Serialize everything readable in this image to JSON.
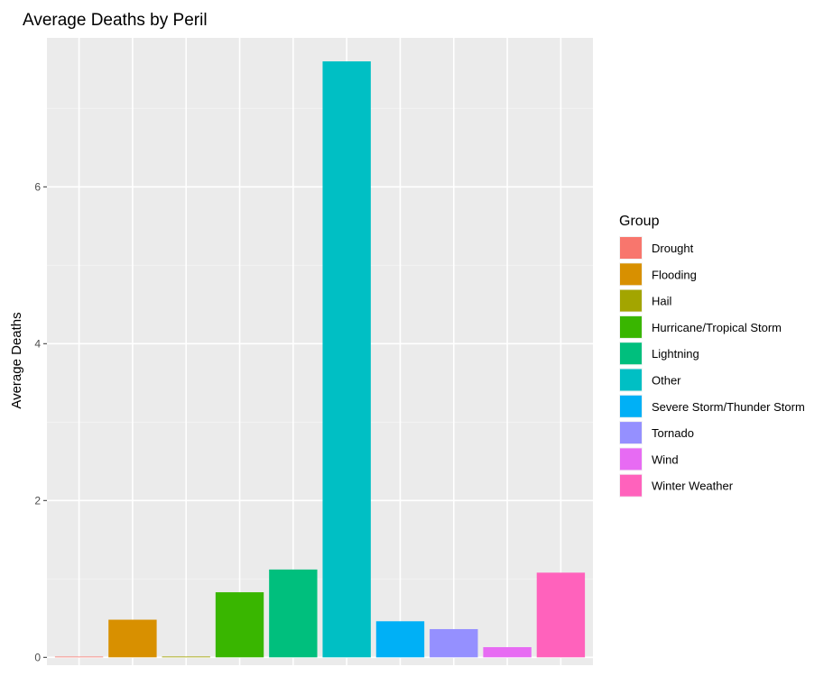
{
  "chart_data": {
    "type": "bar",
    "title": "Average Deaths by Peril",
    "xlabel": "",
    "ylabel": "Average Deaths",
    "ylim": [
      -0.1,
      7.9
    ],
    "yticks": [
      0,
      2,
      4,
      6
    ],
    "grid": true,
    "legend": {
      "title": "Group",
      "position": "right"
    },
    "categories": [
      "Drought",
      "Flooding",
      "Hail",
      "Hurricane/Tropical Storm",
      "Lightning",
      "Other",
      "Severe Storm/Thunder Storm",
      "Tornado",
      "Wind",
      "Winter Weather"
    ],
    "values": [
      0,
      0.48,
      0.01,
      0.83,
      1.12,
      7.6,
      0.46,
      0.36,
      0.13,
      1.08
    ],
    "colors": [
      "#F8766D",
      "#D89000",
      "#A3A500",
      "#39B600",
      "#00BF7D",
      "#00BFC4",
      "#00B0F6",
      "#9590FF",
      "#E76BF3",
      "#FF62BC"
    ]
  }
}
